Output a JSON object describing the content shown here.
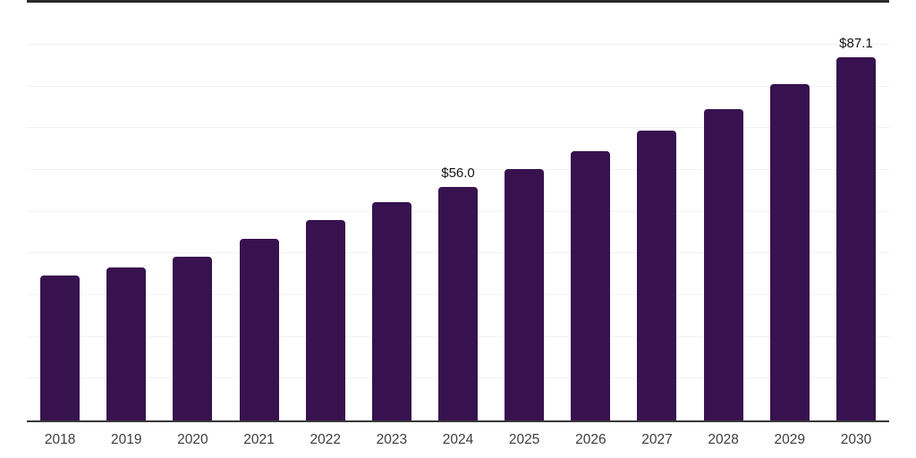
{
  "page": {
    "background": "#ffffff"
  },
  "chart_data": {
    "type": "bar",
    "title": "",
    "xlabel": "",
    "ylabel": "",
    "categories": [
      "2018",
      "2019",
      "2020",
      "2021",
      "2022",
      "2023",
      "2024",
      "2025",
      "2026",
      "2027",
      "2028",
      "2029",
      "2030"
    ],
    "values": [
      34.8,
      36.7,
      39.3,
      43.5,
      48.0,
      52.2,
      56.0,
      60.3,
      64.5,
      69.4,
      74.5,
      80.5,
      87.1
    ],
    "data_labels": {
      "2024": "$56.0",
      "2030": "$87.1"
    },
    "ylim": [
      0,
      90
    ],
    "gridline_step": 10,
    "grid": "horizontal-only",
    "legend": "none",
    "colors": {
      "bar": "#38124f",
      "axis_line": "#383838",
      "top_border": "#2b2b2b",
      "gridline": "#f2f2f2",
      "tick_label": "#3d3d3d",
      "value_label": "#141414"
    }
  }
}
